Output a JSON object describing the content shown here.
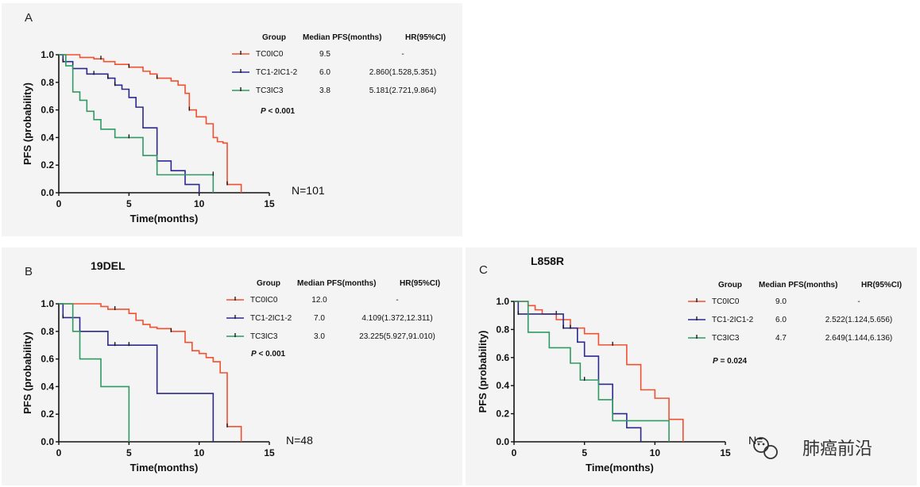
{
  "legend_header": {
    "group": "Group",
    "median": "Median PFS(months)",
    "hr": "HR(95%CI)"
  },
  "colors": {
    "TC0IC0": "#f2502f",
    "TC1-2IC1-2": "#2b2a8c",
    "TC3IC3": "#2f9a63"
  },
  "watermark": {
    "text": "肺癌前沿",
    "icon": "wechat-icon"
  },
  "chart_data": [
    {
      "type": "line",
      "panel": "A",
      "subtitle": "",
      "xlabel": "Time(months)",
      "ylabel": "PFS (probability)",
      "xlim": [
        0,
        15
      ],
      "ylim": [
        0,
        1
      ],
      "xticks": [
        "0",
        "5",
        "10",
        "15"
      ],
      "yticks": [
        "0.0",
        "0.2",
        "0.4",
        "0.6",
        "0.8",
        "1.0"
      ],
      "n_label": "N=101",
      "p_value": "P < 0.001",
      "series": [
        {
          "name": "TC0IC0",
          "median": "9.5",
          "hr": "-",
          "steps": [
            [
              0,
              1.0
            ],
            [
              1.5,
              0.98
            ],
            [
              2.5,
              0.97
            ],
            [
              3.2,
              0.95
            ],
            [
              4,
              0.93
            ],
            [
              5,
              0.91
            ],
            [
              6,
              0.88
            ],
            [
              6.5,
              0.86
            ],
            [
              7,
              0.83
            ],
            [
              8,
              0.81
            ],
            [
              8.5,
              0.78
            ],
            [
              9,
              0.72
            ],
            [
              9.3,
              0.6
            ],
            [
              9.8,
              0.55
            ],
            [
              10.5,
              0.5
            ],
            [
              11,
              0.4
            ],
            [
              11.3,
              0.37
            ],
            [
              11.7,
              0.36
            ],
            [
              12,
              0.06
            ],
            [
              13,
              0.0
            ]
          ],
          "censors": [
            [
              3,
              0.97
            ],
            [
              5,
              0.91
            ],
            [
              7,
              0.83
            ],
            [
              9.3,
              0.6
            ],
            [
              12,
              0.06
            ]
          ]
        },
        {
          "name": "TC1-2IC1-2",
          "median": "6.0",
          "hr": "2.860(1.528,5.351)",
          "steps": [
            [
              0,
              1.0
            ],
            [
              0.3,
              0.95
            ],
            [
              1,
              0.9
            ],
            [
              2,
              0.86
            ],
            [
              3.5,
              0.83
            ],
            [
              4,
              0.78
            ],
            [
              4.5,
              0.75
            ],
            [
              5,
              0.69
            ],
            [
              5.5,
              0.62
            ],
            [
              6,
              0.47
            ],
            [
              7,
              0.23
            ],
            [
              8,
              0.16
            ],
            [
              9,
              0.06
            ],
            [
              10,
              0.0
            ]
          ],
          "censors": [
            [
              0.3,
              0.95
            ],
            [
              2.5,
              0.86
            ],
            [
              3.5,
              0.83
            ],
            [
              4,
              0.78
            ]
          ]
        },
        {
          "name": "TC3IC3",
          "median": "3.8",
          "hr": "5.181(2.721,9.864)",
          "steps": [
            [
              0,
              1.0
            ],
            [
              0.5,
              0.92
            ],
            [
              1,
              0.73
            ],
            [
              1.5,
              0.67
            ],
            [
              2,
              0.59
            ],
            [
              2.5,
              0.53
            ],
            [
              3,
              0.46
            ],
            [
              4,
              0.4
            ],
            [
              5,
              0.4
            ],
            [
              6,
              0.27
            ],
            [
              7,
              0.13
            ],
            [
              11,
              0.0
            ]
          ],
          "censors": [
            [
              5,
              0.4
            ],
            [
              11,
              0.13
            ]
          ]
        }
      ]
    },
    {
      "type": "line",
      "panel": "B",
      "subtitle": "19DEL",
      "xlabel": "Time(months)",
      "ylabel": "PFS (probability)",
      "xlim": [
        0,
        15
      ],
      "ylim": [
        0,
        1
      ],
      "xticks": [
        "0",
        "5",
        "10",
        "15"
      ],
      "yticks": [
        "0.0",
        "0.2",
        "0.4",
        "0.6",
        "0.8",
        "1.0"
      ],
      "n_label": "N=48",
      "p_value": "P < 0.001",
      "series": [
        {
          "name": "TC0IC0",
          "median": "12.0",
          "hr": "-",
          "steps": [
            [
              0,
              1.0
            ],
            [
              3,
              0.98
            ],
            [
              3.5,
              0.96
            ],
            [
              5,
              0.93
            ],
            [
              5.5,
              0.88
            ],
            [
              6,
              0.85
            ],
            [
              6.5,
              0.83
            ],
            [
              7,
              0.82
            ],
            [
              8,
              0.8
            ],
            [
              9,
              0.72
            ],
            [
              9.5,
              0.66
            ],
            [
              10,
              0.64
            ],
            [
              10.5,
              0.61
            ],
            [
              11,
              0.58
            ],
            [
              11.5,
              0.5
            ],
            [
              12,
              0.11
            ],
            [
              13,
              0.0
            ]
          ],
          "censors": [
            [
              4,
              0.96
            ],
            [
              8,
              0.8
            ],
            [
              12,
              0.11
            ]
          ]
        },
        {
          "name": "TC1-2IC1-2",
          "median": "7.0",
          "hr": "4.109(1.372,12.311)",
          "steps": [
            [
              0,
              1.0
            ],
            [
              0.3,
              0.9
            ],
            [
              1.5,
              0.8
            ],
            [
              3.5,
              0.7
            ],
            [
              7,
              0.35
            ],
            [
              11,
              0.0
            ]
          ],
          "censors": [
            [
              0.3,
              0.9
            ],
            [
              4,
              0.7
            ],
            [
              5,
              0.7
            ]
          ]
        },
        {
          "name": "TC3IC3",
          "median": "3.0",
          "hr": "23.225(5.927,91.010)",
          "steps": [
            [
              0,
              1.0
            ],
            [
              1,
              0.8
            ],
            [
              1.5,
              0.6
            ],
            [
              3,
              0.4
            ],
            [
              5,
              0.0
            ]
          ],
          "censors": []
        }
      ]
    },
    {
      "type": "line",
      "panel": "C",
      "subtitle": "L858R",
      "xlabel": "Time(months)",
      "ylabel": "PFS (probability)",
      "xlim": [
        0,
        15
      ],
      "ylim": [
        0,
        1
      ],
      "xticks": [
        "0",
        "5",
        "10",
        "15"
      ],
      "yticks": [
        "0.0",
        "0.2",
        "0.4",
        "0.6",
        "0.8",
        "1.0"
      ],
      "n_label": "N=",
      "p_value": "P = 0.024",
      "series": [
        {
          "name": "TC0IC0",
          "median": "9.0",
          "hr": "-",
          "steps": [
            [
              0,
              1.0
            ],
            [
              1,
              0.97
            ],
            [
              1.5,
              0.94
            ],
            [
              2,
              0.91
            ],
            [
              3,
              0.87
            ],
            [
              4,
              0.81
            ],
            [
              5,
              0.77
            ],
            [
              6,
              0.69
            ],
            [
              8,
              0.55
            ],
            [
              9,
              0.37
            ],
            [
              10,
              0.31
            ],
            [
              11,
              0.16
            ],
            [
              12,
              0.0
            ]
          ],
          "censors": [
            [
              3,
              0.91
            ],
            [
              7,
              0.69
            ]
          ]
        },
        {
          "name": "TC1-2IC1-2",
          "median": "6.0",
          "hr": "2.522(1.124,5.656)",
          "steps": [
            [
              0,
              1.0
            ],
            [
              0.3,
              0.91
            ],
            [
              3.5,
              0.81
            ],
            [
              4.5,
              0.71
            ],
            [
              5,
              0.61
            ],
            [
              6,
              0.41
            ],
            [
              7,
              0.2
            ],
            [
              8,
              0.1
            ],
            [
              9,
              0.0
            ]
          ],
          "censors": [
            [
              0.3,
              0.91
            ],
            [
              3.5,
              0.81
            ],
            [
              4,
              0.81
            ]
          ]
        },
        {
          "name": "TC3IC3",
          "median": "4.7",
          "hr": "2.649(1.144,6.136)",
          "steps": [
            [
              0,
              1.0
            ],
            [
              1,
              0.78
            ],
            [
              2.5,
              0.67
            ],
            [
              4,
              0.56
            ],
            [
              4.7,
              0.44
            ],
            [
              6,
              0.3
            ],
            [
              7,
              0.15
            ],
            [
              11,
              0.0
            ]
          ],
          "censors": [
            [
              5,
              0.44
            ]
          ]
        }
      ]
    }
  ]
}
